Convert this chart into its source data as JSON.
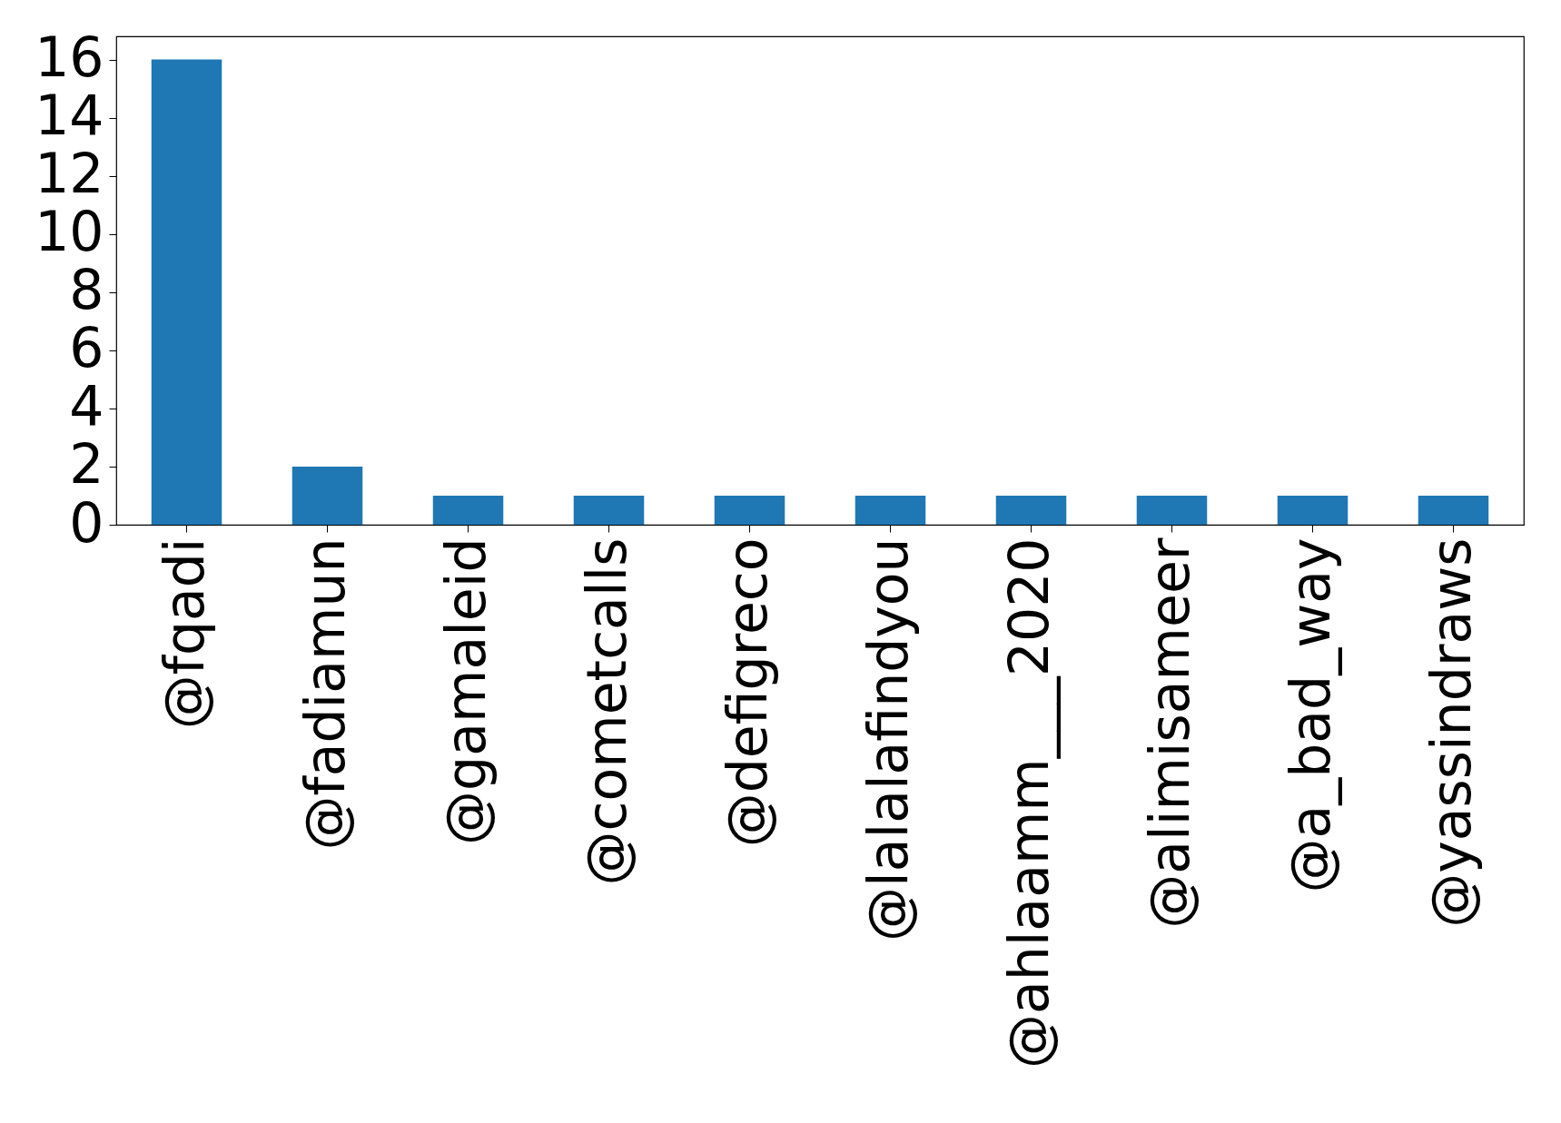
{
  "chart_data": {
    "type": "bar",
    "categories": [
      "@fqadi",
      "@fadiamun",
      "@gamaleid",
      "@cometcalls",
      "@defigreco",
      "@lalalafindyou",
      "@ahlaamm___2020",
      "@alimisameer",
      "@a_bad_way",
      "@yassindraws"
    ],
    "values": [
      16,
      2,
      1,
      1,
      1,
      1,
      1,
      1,
      1,
      1
    ],
    "color": "#1f77b4",
    "ylim": [
      0,
      16.8
    ],
    "yticks": [
      0,
      2,
      4,
      6,
      8,
      10,
      12,
      14,
      16
    ],
    "grid": false
  }
}
